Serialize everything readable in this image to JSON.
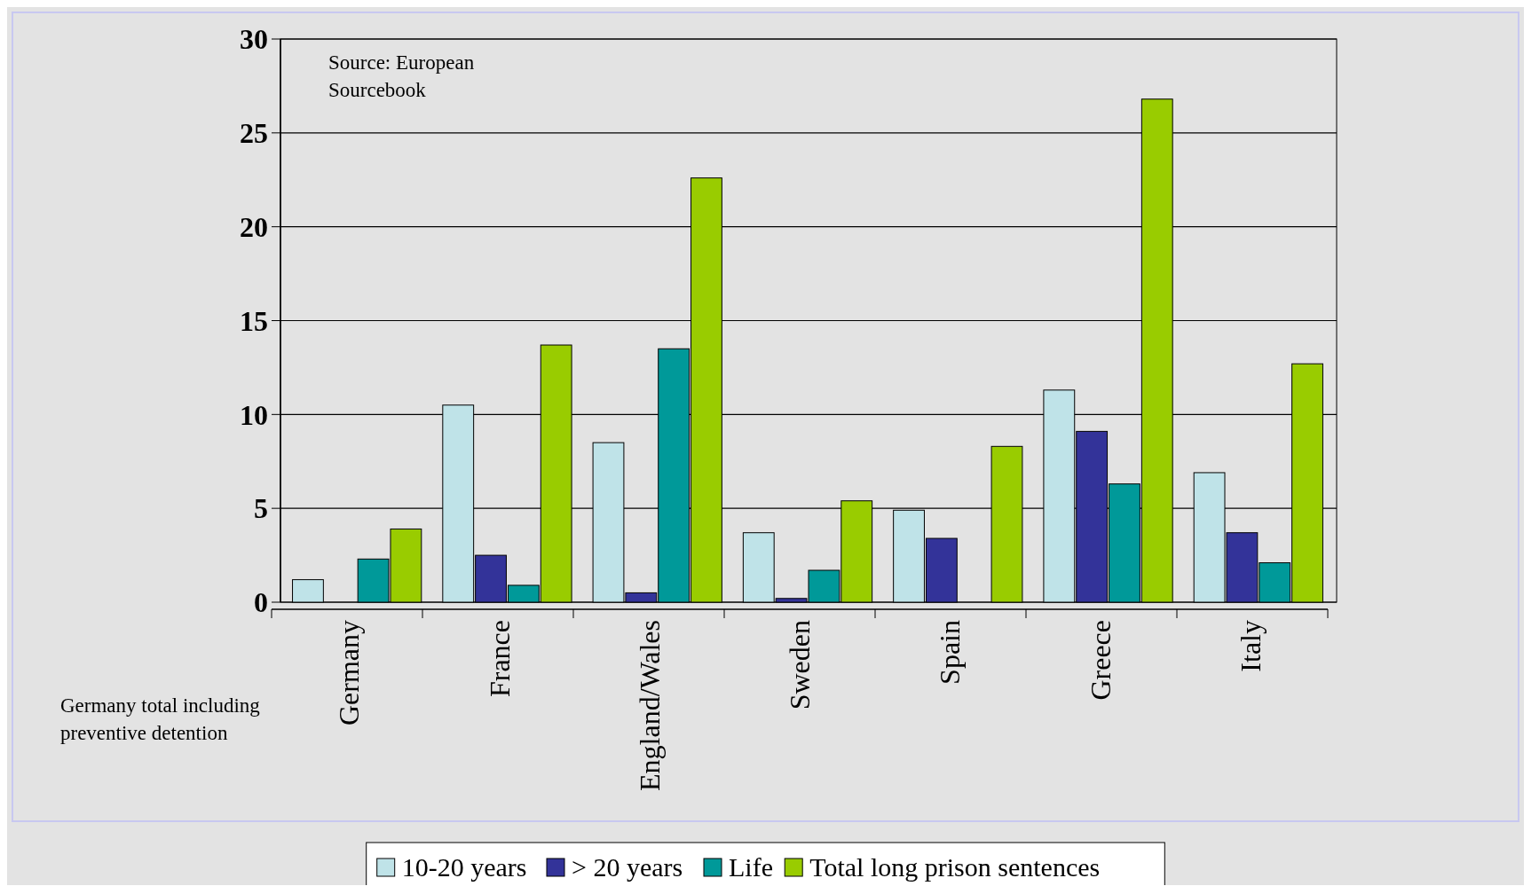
{
  "chart_data": {
    "type": "bar",
    "categories": [
      "Germany",
      "France",
      "England/Wales",
      "Sweden",
      "Spain",
      "Greece",
      "Italy"
    ],
    "series": [
      {
        "name": "10-20 years",
        "color": "#bfe3e8",
        "values": [
          1.2,
          10.5,
          8.5,
          3.7,
          4.9,
          11.3,
          6.9
        ]
      },
      {
        "name": "> 20 years",
        "color": "#333399",
        "values": [
          0,
          2.5,
          0.5,
          0.2,
          3.4,
          9.1,
          3.7
        ]
      },
      {
        "name": "Life",
        "color": "#009999",
        "values": [
          2.3,
          0.9,
          13.5,
          1.7,
          0,
          6.3,
          2.1
        ]
      },
      {
        "name": "Total long prison sentences",
        "color": "#99cc00",
        "values": [
          3.9,
          13.7,
          22.6,
          5.4,
          8.3,
          26.8,
          12.7
        ]
      }
    ],
    "ylim": [
      0,
      30
    ],
    "yticks": [
      0,
      5,
      10,
      15,
      20,
      25,
      30
    ],
    "grid": "y",
    "legend": "bottom",
    "annotations": [
      "Source: European Sourcebook",
      "Germany total including preventive detention"
    ]
  }
}
